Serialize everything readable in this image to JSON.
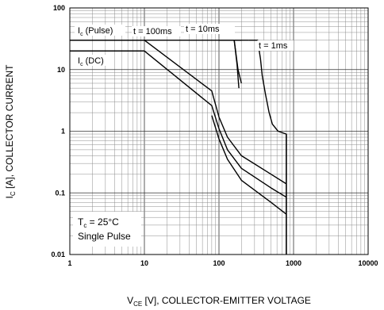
{
  "chart_data": {
    "type": "line",
    "xscale": "log",
    "yscale": "log",
    "xlim": [
      1,
      10000
    ],
    "ylim": [
      0.01,
      100
    ],
    "grid": true,
    "xlabel_main": "V",
    "xlabel_sub": "CE",
    "xlabel_rest": " [V], COLLECTOR-EMITTER VOLTAGE",
    "ylabel_main": "I",
    "ylabel_sub": "C",
    "ylabel_rest": " [A], COLLECTOR CURRENT",
    "xticks": [
      {
        "value": 1,
        "label": "1"
      },
      {
        "value": 10,
        "label": "10"
      },
      {
        "value": 100,
        "label": "100"
      },
      {
        "value": 1000,
        "label": "1000"
      },
      {
        "value": 10000,
        "label": "10000"
      }
    ],
    "yticks": [
      {
        "value": 100,
        "label": "100"
      },
      {
        "value": 10,
        "label": "10"
      },
      {
        "value": 1,
        "label": "1"
      },
      {
        "value": 0.1,
        "label": "0.1"
      },
      {
        "value": 0.01,
        "label": "0.01"
      }
    ],
    "series": [
      {
        "name": "t = 1ms",
        "points": [
          [
            250,
            30
          ],
          [
            330,
            30
          ],
          [
            360,
            15
          ],
          [
            380,
            8
          ],
          [
            420,
            4
          ],
          [
            470,
            2
          ],
          [
            520,
            1.3
          ],
          [
            620,
            1.0
          ],
          [
            800,
            0.9
          ],
          [
            800,
            0.01
          ]
        ]
      },
      {
        "name": "t = 10ms",
        "points": [
          [
            100,
            30
          ],
          [
            130,
            30
          ],
          [
            160,
            30
          ],
          [
            200,
            30
          ]
        ],
        "steep": [
          [
            160,
            30
          ],
          [
            180,
            10
          ],
          [
            200,
            6
          ]
        ]
      },
      {
        "name": "t = 100ms",
        "points": [
          [
            1,
            30
          ],
          [
            10,
            30
          ],
          [
            80,
            4.5
          ],
          [
            100,
            1.7
          ],
          [
            130,
            0.8
          ],
          [
            200,
            0.4
          ],
          [
            500,
            0.2
          ],
          [
            800,
            0.14
          ]
        ]
      },
      {
        "name": "I_C (DC)",
        "points": [
          [
            1,
            20
          ],
          [
            10,
            20
          ],
          [
            80,
            2.6
          ],
          [
            100,
            1.1
          ],
          [
            130,
            0.5
          ],
          [
            200,
            0.25
          ],
          [
            500,
            0.12
          ],
          [
            800,
            0.085
          ]
        ]
      },
      {
        "name": "DC",
        "points": [
          [
            80,
            1.8
          ],
          [
            100,
            0.75
          ],
          [
            130,
            0.35
          ],
          [
            200,
            0.16
          ],
          [
            500,
            0.07
          ],
          [
            800,
            0.045
          ]
        ]
      }
    ],
    "lines": [
      {
        "id": "pulse-limit",
        "points": [
          [
            1,
            30
          ],
          [
            250,
            30
          ]
        ]
      },
      {
        "id": "dc-limit",
        "points": [
          [
            1,
            20
          ],
          [
            10,
            20
          ]
        ]
      },
      {
        "id": "10ms-upper",
        "points": [
          [
            160,
            30
          ],
          [
            175,
            12
          ],
          [
            185,
            5
          ]
        ]
      },
      {
        "id": "vce-limit",
        "points": [
          [
            800,
            0.9
          ],
          [
            800,
            0.01
          ]
        ]
      }
    ],
    "annotations": {
      "ic_pulse_main": "I",
      "ic_pulse_sub": "c",
      "ic_pulse_rest": " (Pulse)",
      "ic_dc_main": "I",
      "ic_dc_sub": "c",
      "ic_dc_rest": " (DC)",
      "t100": "t = 100ms",
      "t10": "t = 10ms",
      "t1": "t = 1ms",
      "tc_main": "T",
      "tc_sub": "c",
      "tc_rest": " = 25°C",
      "single_pulse": "Single Pulse"
    }
  }
}
